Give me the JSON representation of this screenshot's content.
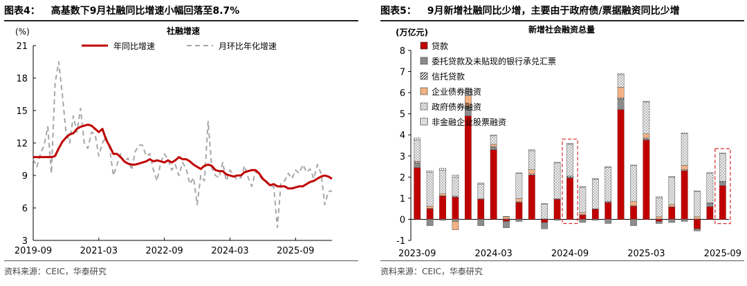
{
  "left": {
    "fig_no": "图表4：",
    "title": "高基数下9月社融同比增速小幅回落至8.7%",
    "source": "资料来源：CEIC，华泰研究"
  },
  "right": {
    "fig_no": "图表5：",
    "title": "9月新增社融同比少增，主要由于政府债/票据融资同比少增",
    "source": "资料来源：CEIC，华泰研究"
  },
  "chart_data": [
    {
      "type": "line",
      "title": "社融增速",
      "ylabel": "(%)",
      "ylim": [
        3,
        21
      ],
      "yticks": [
        3,
        6,
        9,
        12,
        15,
        18,
        21
      ],
      "xticks": [
        "2019-09",
        "2021-03",
        "2022-09",
        "2024-03",
        "2025-09"
      ],
      "x_start": "2019-09",
      "legend": "top",
      "series": [
        {
          "name": "年同比增速",
          "color": "#c00000",
          "style": "solid",
          "values": [
            10.7,
            10.7,
            10.7,
            10.7,
            10.7,
            10.7,
            10.8,
            11.5,
            12.1,
            12.5,
            12.8,
            12.9,
            13.3,
            13.5,
            13.6,
            13.7,
            13.6,
            13.3,
            13.0,
            13.3,
            12.3,
            11.7,
            11.0,
            11.0,
            10.7,
            10.3,
            10.1,
            10.0,
            10.0,
            10.1,
            10.2,
            10.3,
            10.5,
            10.3,
            10.4,
            10.3,
            10.2,
            10.4,
            10.2,
            10.4,
            10.7,
            10.5,
            10.5,
            10.3,
            10.0,
            9.8,
            9.6,
            9.9,
            10.0,
            9.9,
            9.5,
            9.4,
            9.4,
            9.1,
            9.0,
            8.9,
            9.0,
            9.0,
            9.3,
            9.4,
            9.5,
            9.5,
            9.2,
            8.7,
            8.4,
            8.1,
            8.2,
            8.0,
            8.0,
            8.0,
            7.8,
            7.8,
            7.9,
            8.0,
            8.0,
            8.2,
            8.4,
            8.5,
            8.7,
            8.9,
            9.0,
            8.9,
            8.7
          ]
        },
        {
          "name": "月环比年化增速",
          "color": "#a6a6a6",
          "style": "dashed",
          "values": [
            10.5,
            9.8,
            11.0,
            11.8,
            13.5,
            9.2,
            17.5,
            19.5,
            16.5,
            13.0,
            12.0,
            14.5,
            13.0,
            15.2,
            12.0,
            11.5,
            13.0,
            12.8,
            10.8,
            12.0,
            12.6,
            11.5,
            9.0,
            10.0,
            11.0,
            10.2,
            10.6,
            9.5,
            11.2,
            11.8,
            11.8,
            10.8,
            11.0,
            9.5,
            8.5,
            10.2,
            11.0,
            10.5,
            9.5,
            10.0,
            9.0,
            10.2,
            9.6,
            8.2,
            8.8,
            6.3,
            9.0,
            8.5,
            14.0,
            9.7,
            9.0,
            8.8,
            10.2,
            8.5,
            9.5,
            9.0,
            8.6,
            8.8,
            9.9,
            8.8,
            8.0,
            9.4,
            9.0,
            8.6,
            8.5,
            8.0,
            8.0,
            4.2,
            8.3,
            8.5,
            9.2,
            8.7,
            9.5,
            9.2,
            10.0,
            9.3,
            9.6,
            8.7,
            10.0,
            9.2,
            6.3,
            7.5,
            7.6
          ]
        }
      ]
    },
    {
      "type": "bar",
      "stacked": true,
      "title": "新增社会融资总量",
      "ylabel": "(万亿元)",
      "ylim": [
        -1,
        8
      ],
      "yticks": [
        -1,
        0,
        1,
        2,
        3,
        4,
        5,
        6,
        7,
        8
      ],
      "xticks": [
        "2023-09",
        "2024-03",
        "2024-09",
        "2025-03",
        "2025-09"
      ],
      "categories": [
        "2023-09",
        "2023-10",
        "2023-11",
        "2023-12",
        "2024-01",
        "2024-02",
        "2024-03",
        "2024-04",
        "2024-05",
        "2024-06",
        "2024-07",
        "2024-08",
        "2024-09",
        "2024-10",
        "2024-11",
        "2024-12",
        "2025-01",
        "2025-02",
        "2025-03",
        "2025-04",
        "2025-05",
        "2025-06",
        "2025-07",
        "2025-08",
        "2025-09"
      ],
      "highlighted": [
        "2024-09",
        "2025-09"
      ],
      "legend": "top-left",
      "series": [
        {
          "name": "贷款",
          "color": "#c00000",
          "pattern": "solid",
          "values": [
            2.45,
            0.5,
            1.1,
            1.05,
            4.9,
            0.95,
            3.3,
            -0.1,
            0.8,
            2.1,
            -0.15,
            0.95,
            1.95,
            0.2,
            0.48,
            0.8,
            5.2,
            0.62,
            3.75,
            -0.1,
            0.58,
            2.3,
            -0.45,
            0.6,
            1.6
          ]
        },
        {
          "name": "委托贷款及未贴现的银行承兑汇票",
          "color": "#8c8c8c",
          "pattern": "solid-gray",
          "values": [
            0.2,
            -0.3,
            -0.05,
            -0.1,
            0.4,
            -0.3,
            0.1,
            -0.3,
            -0.1,
            0.0,
            -0.3,
            -0.05,
            0.05,
            -0.15,
            -0.05,
            -0.2,
            0.5,
            -0.3,
            0.05,
            -0.1,
            -0.15,
            -0.1,
            -0.1,
            0.15,
            0.15
          ]
        },
        {
          "name": "信托贷款",
          "color": "#000000",
          "pattern": "hatch",
          "values": [
            0.05,
            0.02,
            0.02,
            0.05,
            0.05,
            0.02,
            0.05,
            0.02,
            0.03,
            0.05,
            0.02,
            0.02,
            0.05,
            0.02,
            0.02,
            0.05,
            0.05,
            0.02,
            0.05,
            0.02,
            0.02,
            0.05,
            0.02,
            0.03,
            0.05
          ]
        },
        {
          "name": "企业债券融资",
          "color": "#f4b183",
          "pattern": "solid-orange",
          "values": [
            0.05,
            0.1,
            0.1,
            -0.4,
            0.5,
            0.0,
            0.1,
            0.1,
            0.15,
            0.2,
            0.0,
            0.0,
            0.0,
            0.1,
            0.0,
            0.0,
            0.5,
            0.2,
            0.2,
            0.1,
            0.1,
            0.2,
            0.1,
            0.0,
            0.0
          ]
        },
        {
          "name": "政府债券融资",
          "color": "#d9d9d9",
          "pattern": "cross-hatch",
          "values": [
            1.0,
            1.6,
            1.1,
            0.9,
            0.3,
            0.7,
            0.4,
            0.0,
            1.2,
            0.9,
            0.7,
            1.7,
            1.5,
            1.2,
            1.4,
            1.6,
            0.6,
            1.7,
            1.5,
            0.9,
            1.3,
            1.5,
            1.2,
            1.4,
            1.3
          ]
        },
        {
          "name": "非金融企业股票融资",
          "color": "#bfbfbf",
          "pattern": "vertical",
          "values": [
            0.1,
            0.08,
            0.1,
            0.1,
            0.05,
            0.05,
            0.05,
            0.02,
            0.02,
            0.05,
            0.03,
            0.03,
            0.05,
            0.03,
            0.03,
            0.05,
            0.05,
            0.03,
            0.05,
            0.05,
            0.03,
            0.05,
            0.03,
            0.03,
            0.05
          ]
        }
      ]
    }
  ]
}
